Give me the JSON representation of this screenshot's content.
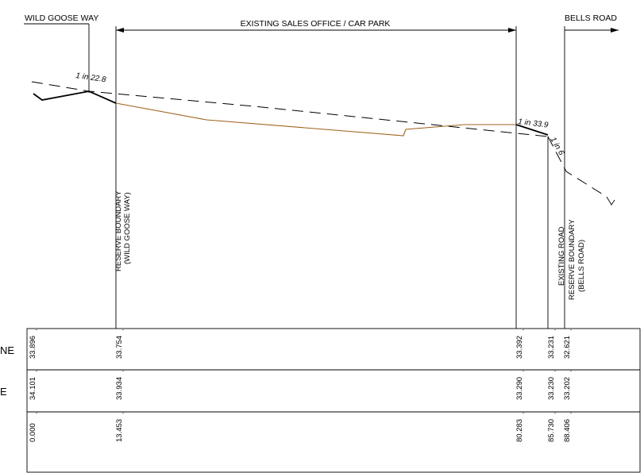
{
  "labels": {
    "wild_goose_way": "WILD GOOSE WAY",
    "existing_sales_office": "EXISTING SALES OFFICE / CAR PARK",
    "bells_road": "BELLS ROAD",
    "reserve_boundary_1": "RESERVE BOUNDARY",
    "reserve_boundary_1_sub": "(WILD GOOSE WAY)",
    "existing_road": "EXISTING ROAD",
    "reserve_boundary_2": "RESERVE BOUNDARY",
    "reserve_boundary_2_sub": "(BELLS ROAD)"
  },
  "slopes": {
    "left": "1 in 22.8",
    "right": "1 in 33.9",
    "steep": "1 in 6"
  },
  "table": {
    "row_labels": [
      "NE",
      "E"
    ],
    "rows": [
      [
        "33.896",
        "33.754",
        "33.392",
        "33.231",
        "32.621"
      ],
      [
        "34.101",
        "33.934",
        "33.290",
        "33.230",
        "33.202"
      ],
      [
        "0.000",
        "13.453",
        "80.283",
        "85.730",
        "88.406"
      ]
    ]
  },
  "colors": {
    "line": "#000000",
    "existing_surface": "#a0621c"
  }
}
